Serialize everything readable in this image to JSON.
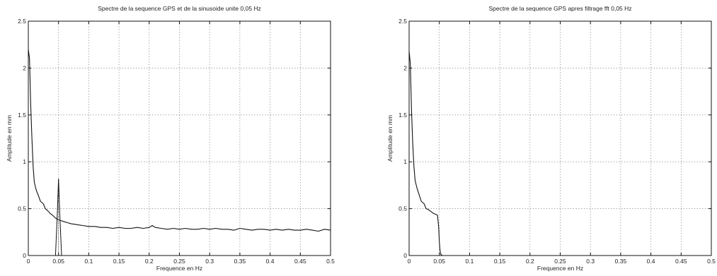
{
  "chart_data": [
    {
      "type": "line",
      "title": "Spectre de la sequence GPS et de la sinusoide unite 0,05 Hz",
      "xlabel": "Frequence en Hz",
      "ylabel": "Amplitude en mm",
      "xlim": [
        0,
        0.5
      ],
      "ylim": [
        0,
        2.5
      ],
      "xticks": [
        0,
        0.05,
        0.1,
        0.15,
        0.2,
        0.25,
        0.3,
        0.35,
        0.4,
        0.45,
        0.5
      ],
      "xtick_labels": [
        "0",
        "0.05",
        "0.1",
        "0.15",
        "0.2",
        "0.25",
        "0.3",
        "0.35",
        "0.4",
        "0.45",
        "0.5"
      ],
      "yticks": [
        0,
        0.5,
        1,
        1.5,
        2,
        2.5
      ],
      "ytick_labels": [
        "0",
        "0.5",
        "1",
        "1.5",
        "2",
        "2.5"
      ],
      "grid": true,
      "series": [
        {
          "x": [
            0,
            0.002,
            0.004,
            0.006,
            0.008,
            0.01,
            0.013,
            0.016,
            0.02,
            0.025,
            0.028,
            0.032,
            0.036,
            0.04,
            0.045,
            0.05,
            0.055,
            0.06,
            0.065,
            0.07,
            0.08,
            0.09,
            0.1,
            0.11,
            0.12,
            0.13,
            0.14,
            0.15,
            0.16,
            0.17,
            0.18,
            0.19,
            0.2,
            0.205,
            0.21,
            0.22,
            0.23,
            0.24,
            0.25,
            0.26,
            0.27,
            0.28,
            0.29,
            0.3,
            0.31,
            0.32,
            0.33,
            0.34,
            0.35,
            0.36,
            0.37,
            0.38,
            0.39,
            0.4,
            0.41,
            0.42,
            0.43,
            0.44,
            0.45,
            0.46,
            0.47,
            0.48,
            0.49,
            0.5
          ],
          "y": [
            2.2,
            2.1,
            1.6,
            1.25,
            0.95,
            0.78,
            0.7,
            0.65,
            0.58,
            0.55,
            0.5,
            0.48,
            0.45,
            0.43,
            0.4,
            0.38,
            0.37,
            0.36,
            0.35,
            0.34,
            0.33,
            0.32,
            0.31,
            0.31,
            0.3,
            0.3,
            0.29,
            0.3,
            0.29,
            0.29,
            0.3,
            0.29,
            0.3,
            0.32,
            0.3,
            0.29,
            0.28,
            0.29,
            0.28,
            0.29,
            0.28,
            0.28,
            0.29,
            0.28,
            0.29,
            0.28,
            0.28,
            0.27,
            0.29,
            0.28,
            0.27,
            0.28,
            0.28,
            0.27,
            0.28,
            0.27,
            0.28,
            0.27,
            0.27,
            0.28,
            0.27,
            0.26,
            0.28,
            0.27
          ]
        },
        {
          "x": [
            0.045,
            0.048,
            0.05,
            0.052,
            0.055
          ],
          "y": [
            0,
            0.45,
            0.82,
            0.45,
            0
          ]
        }
      ]
    },
    {
      "type": "line",
      "title": "Spectre de la sequence GPS apres filtrage fft 0,05 Hz",
      "xlabel": "Frequence en Hz",
      "ylabel": "Amplitude en mm",
      "xlim": [
        0,
        0.5
      ],
      "ylim": [
        0,
        2.5
      ],
      "xticks": [
        0,
        0.05,
        0.1,
        0.15,
        0.2,
        0.25,
        0.3,
        0.35,
        0.4,
        0.45,
        0.5
      ],
      "xtick_labels": [
        "0",
        "0.05",
        "0.1",
        "0.15",
        "0.2",
        "0.25",
        "0.3",
        "0.35",
        "0.4",
        "0.45",
        "0.5"
      ],
      "yticks": [
        0,
        0.5,
        1,
        1.5,
        2,
        2.5
      ],
      "ytick_labels": [
        "0",
        "0.5",
        "1",
        "1.5",
        "2",
        "2.5"
      ],
      "grid": true,
      "series": [
        {
          "x": [
            0,
            0.002,
            0.004,
            0.006,
            0.008,
            0.01,
            0.013,
            0.016,
            0.02,
            0.025,
            0.028,
            0.032,
            0.036,
            0.04,
            0.044,
            0.047,
            0.049,
            0.05,
            0.051,
            0.052,
            0.053,
            0.055,
            0.06,
            0.07,
            0.08,
            0.1,
            0.15,
            0.2,
            0.25,
            0.3,
            0.35,
            0.4,
            0.45,
            0.5
          ],
          "y": [
            2.18,
            2.05,
            1.55,
            1.2,
            0.95,
            0.8,
            0.72,
            0.66,
            0.58,
            0.55,
            0.5,
            0.49,
            0.47,
            0.45,
            0.44,
            0.43,
            0.3,
            0.15,
            0.06,
            0.02,
            0.01,
            0,
            0,
            0,
            0,
            0,
            0,
            0,
            0,
            0,
            0,
            0,
            0,
            0
          ]
        }
      ]
    }
  ]
}
